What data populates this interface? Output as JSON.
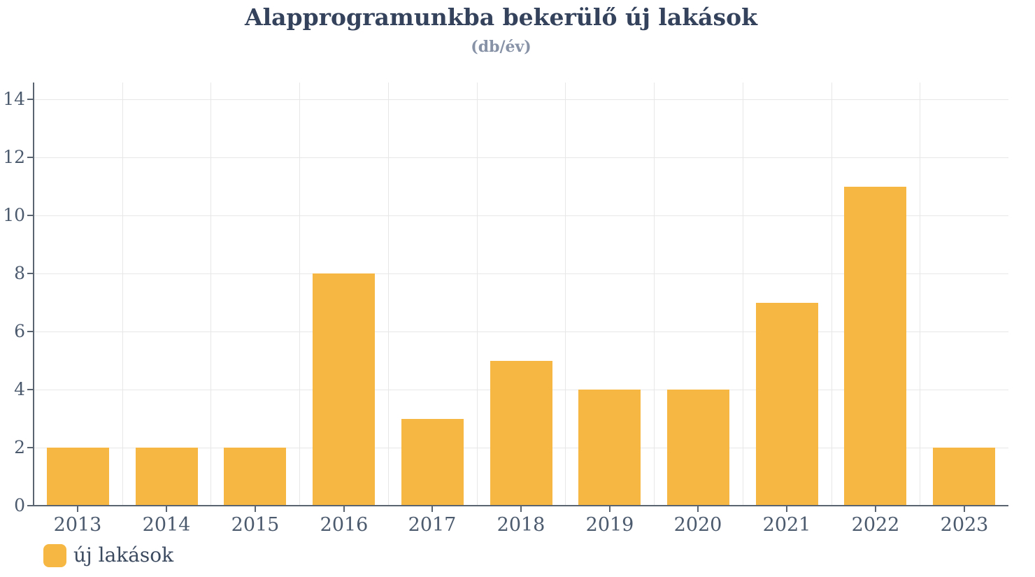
{
  "chart_data": {
    "type": "bar",
    "title": "Alapprogramunkba bekerülő új lakások",
    "subtitle": "(db/év)",
    "categories": [
      "2013",
      "2014",
      "2015",
      "2016",
      "2017",
      "2018",
      "2019",
      "2020",
      "2021",
      "2022",
      "2023"
    ],
    "series": [
      {
        "name": "új lakások",
        "color": "#F6B842",
        "values": [
          2,
          2,
          2,
          8,
          3,
          5,
          4,
          4,
          7,
          11,
          2
        ]
      }
    ],
    "xlabel": "",
    "ylabel": "",
    "ylim": [
      0,
      14.58
    ],
    "yticks": [
      0,
      2,
      4,
      6,
      8,
      10,
      12,
      14
    ],
    "grid": true,
    "legend_position": "bottom-left"
  },
  "colors": {
    "bar": "#F6B842",
    "title_text": "#34425B",
    "subtitle_text": "#8792A7",
    "axis_label": "#4C5A6E",
    "axis_line": "#5A6470",
    "grid_line": "#E7E7E7",
    "background": "#FFFFFF"
  }
}
